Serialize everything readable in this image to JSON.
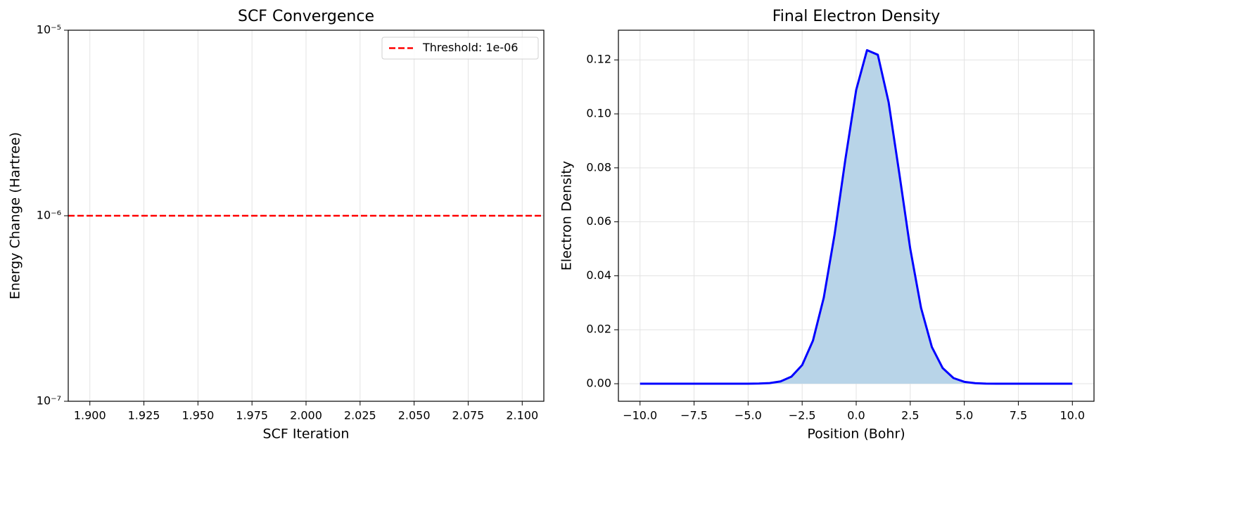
{
  "chart_data": [
    {
      "type": "line",
      "title": "SCF Convergence",
      "xlabel": "SCF Iteration",
      "ylabel": "Energy Change (Hartree)",
      "xlim": [
        1.89,
        2.11
      ],
      "xticks": [
        {
          "value": 1.9,
          "label": "1.900"
        },
        {
          "value": 1.925,
          "label": "1.925"
        },
        {
          "value": 1.95,
          "label": "1.950"
        },
        {
          "value": 1.975,
          "label": "1.975"
        },
        {
          "value": 2.0,
          "label": "2.000"
        },
        {
          "value": 2.025,
          "label": "2.025"
        },
        {
          "value": 2.05,
          "label": "2.050"
        },
        {
          "value": 2.075,
          "label": "2.075"
        },
        {
          "value": 2.1,
          "label": "2.100"
        }
      ],
      "ylim": [
        1e-07,
        1e-05
      ],
      "yscale": "log",
      "yticks": [
        {
          "value": 1e-07,
          "label": "10⁻⁷"
        },
        {
          "value": 1e-06,
          "label": "10⁻⁶"
        },
        {
          "value": 1e-05,
          "label": "10⁻⁵"
        }
      ],
      "grid": true,
      "legend": "upper right",
      "hlines": [
        {
          "name": "Threshold: 1e-06",
          "value": 1e-06,
          "color": "#ff0000",
          "linestyle": "dashed"
        }
      ]
    },
    {
      "type": "area",
      "title": "Final Electron Density",
      "xlabel": "Position (Bohr)",
      "ylabel": "Electron Density",
      "xlim": [
        -11,
        11
      ],
      "xticks": [
        {
          "value": -10,
          "label": "−10.0"
        },
        {
          "value": -7.5,
          "label": "−7.5"
        },
        {
          "value": -5,
          "label": "−5.0"
        },
        {
          "value": -2.5,
          "label": "−2.5"
        },
        {
          "value": 0,
          "label": "0.0"
        },
        {
          "value": 2.5,
          "label": "2.5"
        },
        {
          "value": 5,
          "label": "5.0"
        },
        {
          "value": 7.5,
          "label": "7.5"
        },
        {
          "value": 10,
          "label": "10.0"
        }
      ],
      "ylim": [
        -0.0065,
        0.131
      ],
      "yticks": [
        {
          "value": 0,
          "label": "0.00"
        },
        {
          "value": 0.02,
          "label": "0.02"
        },
        {
          "value": 0.04,
          "label": "0.04"
        },
        {
          "value": 0.06,
          "label": "0.06"
        },
        {
          "value": 0.08,
          "label": "0.08"
        },
        {
          "value": 0.1,
          "label": "0.10"
        },
        {
          "value": 0.12,
          "label": "0.12"
        }
      ],
      "grid": true,
      "x": [
        -10,
        -9.5,
        -9,
        -8.5,
        -8,
        -7.5,
        -7,
        -6.5,
        -6,
        -5.5,
        -5,
        -4.5,
        -4,
        -3.5,
        -3,
        -2.5,
        -2,
        -1.5,
        -1,
        -0.5,
        0,
        0.5,
        1,
        1.5,
        2,
        2.5,
        3,
        3.5,
        4,
        4.5,
        5,
        5.5,
        6,
        6.5,
        7,
        7.5,
        8,
        8.5,
        9,
        9.5,
        10
      ],
      "series": [
        {
          "color": "#0000ff",
          "fill": "#b8d4e8",
          "values": [
            0,
            0,
            0,
            0,
            0,
            0,
            0,
            0,
            0,
            0,
            1e-05,
            6e-05,
            0.00024,
            0.00086,
            0.0026,
            0.0069,
            0.016,
            0.0319,
            0.0553,
            0.0832,
            0.1089,
            0.1236,
            0.1219,
            0.1043,
            0.0776,
            0.05,
            0.0281,
            0.0136,
            0.0058,
            0.0021,
            0.0007,
            0.0002,
            4e-05,
            0,
            0,
            0,
            0,
            0,
            0,
            0,
            0
          ]
        }
      ]
    }
  ]
}
